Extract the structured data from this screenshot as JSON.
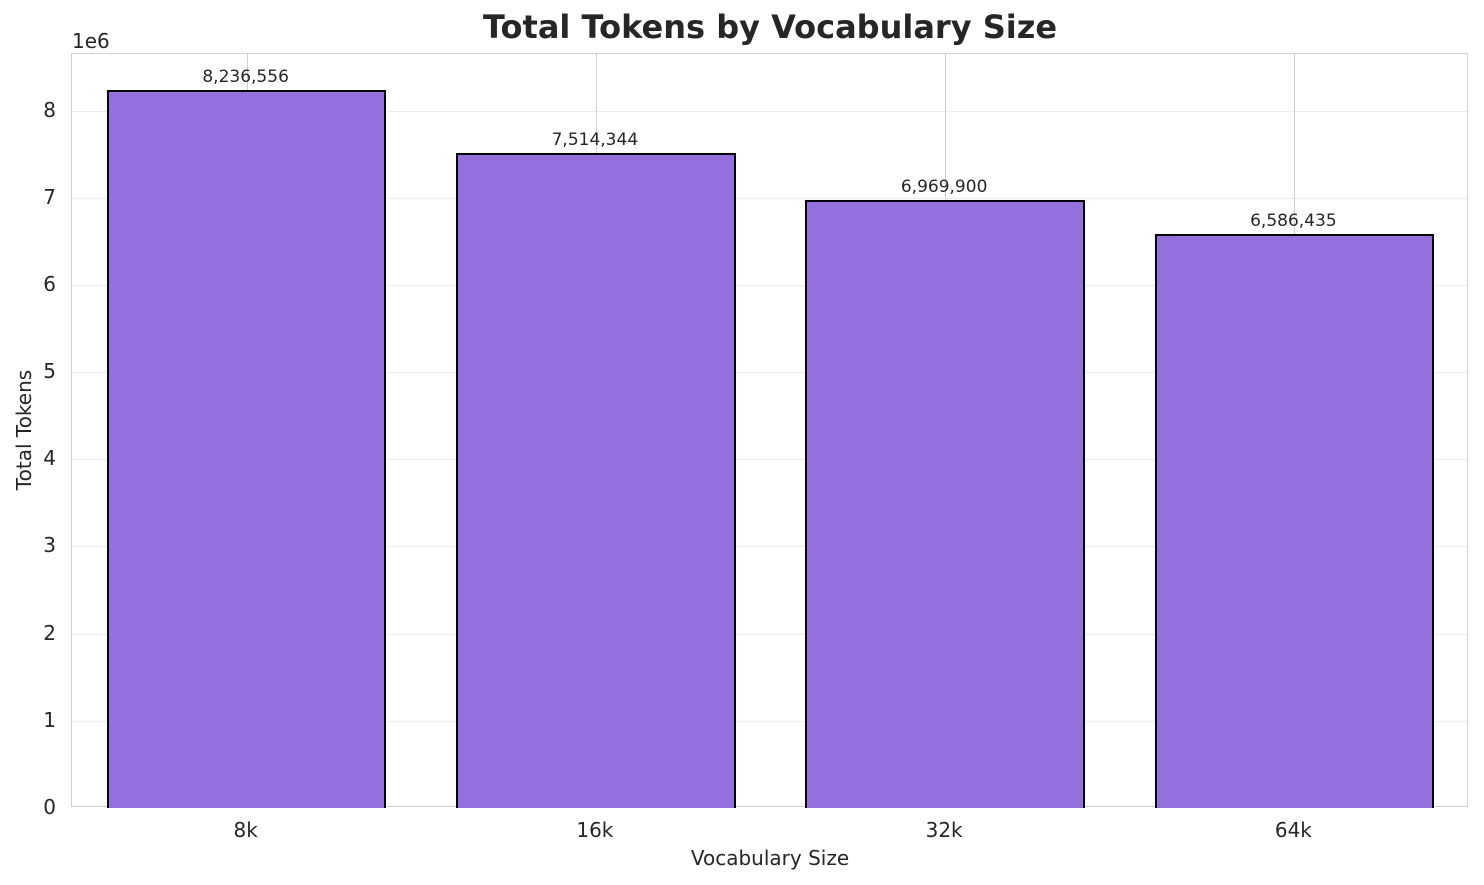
{
  "chart_data": {
    "type": "bar",
    "title": "Total Tokens by Vocabulary Size",
    "xlabel": "Vocabulary Size",
    "ylabel": "Total Tokens",
    "y_offset_label": "1e6",
    "categories": [
      "8k",
      "16k",
      "32k",
      "64k"
    ],
    "values": [
      8236556,
      7514344,
      6969900,
      6586435
    ],
    "value_labels": [
      "8,236,556",
      "7,514,344",
      "6,969,900",
      "6,586,435"
    ],
    "yticks": [
      "0",
      "1",
      "2",
      "3",
      "4",
      "5",
      "6",
      "7",
      "8"
    ],
    "ylim": [
      0,
      8650000
    ],
    "grid": true,
    "bar_color": "#9370db",
    "edge_color": "#000000",
    "legend": null
  }
}
